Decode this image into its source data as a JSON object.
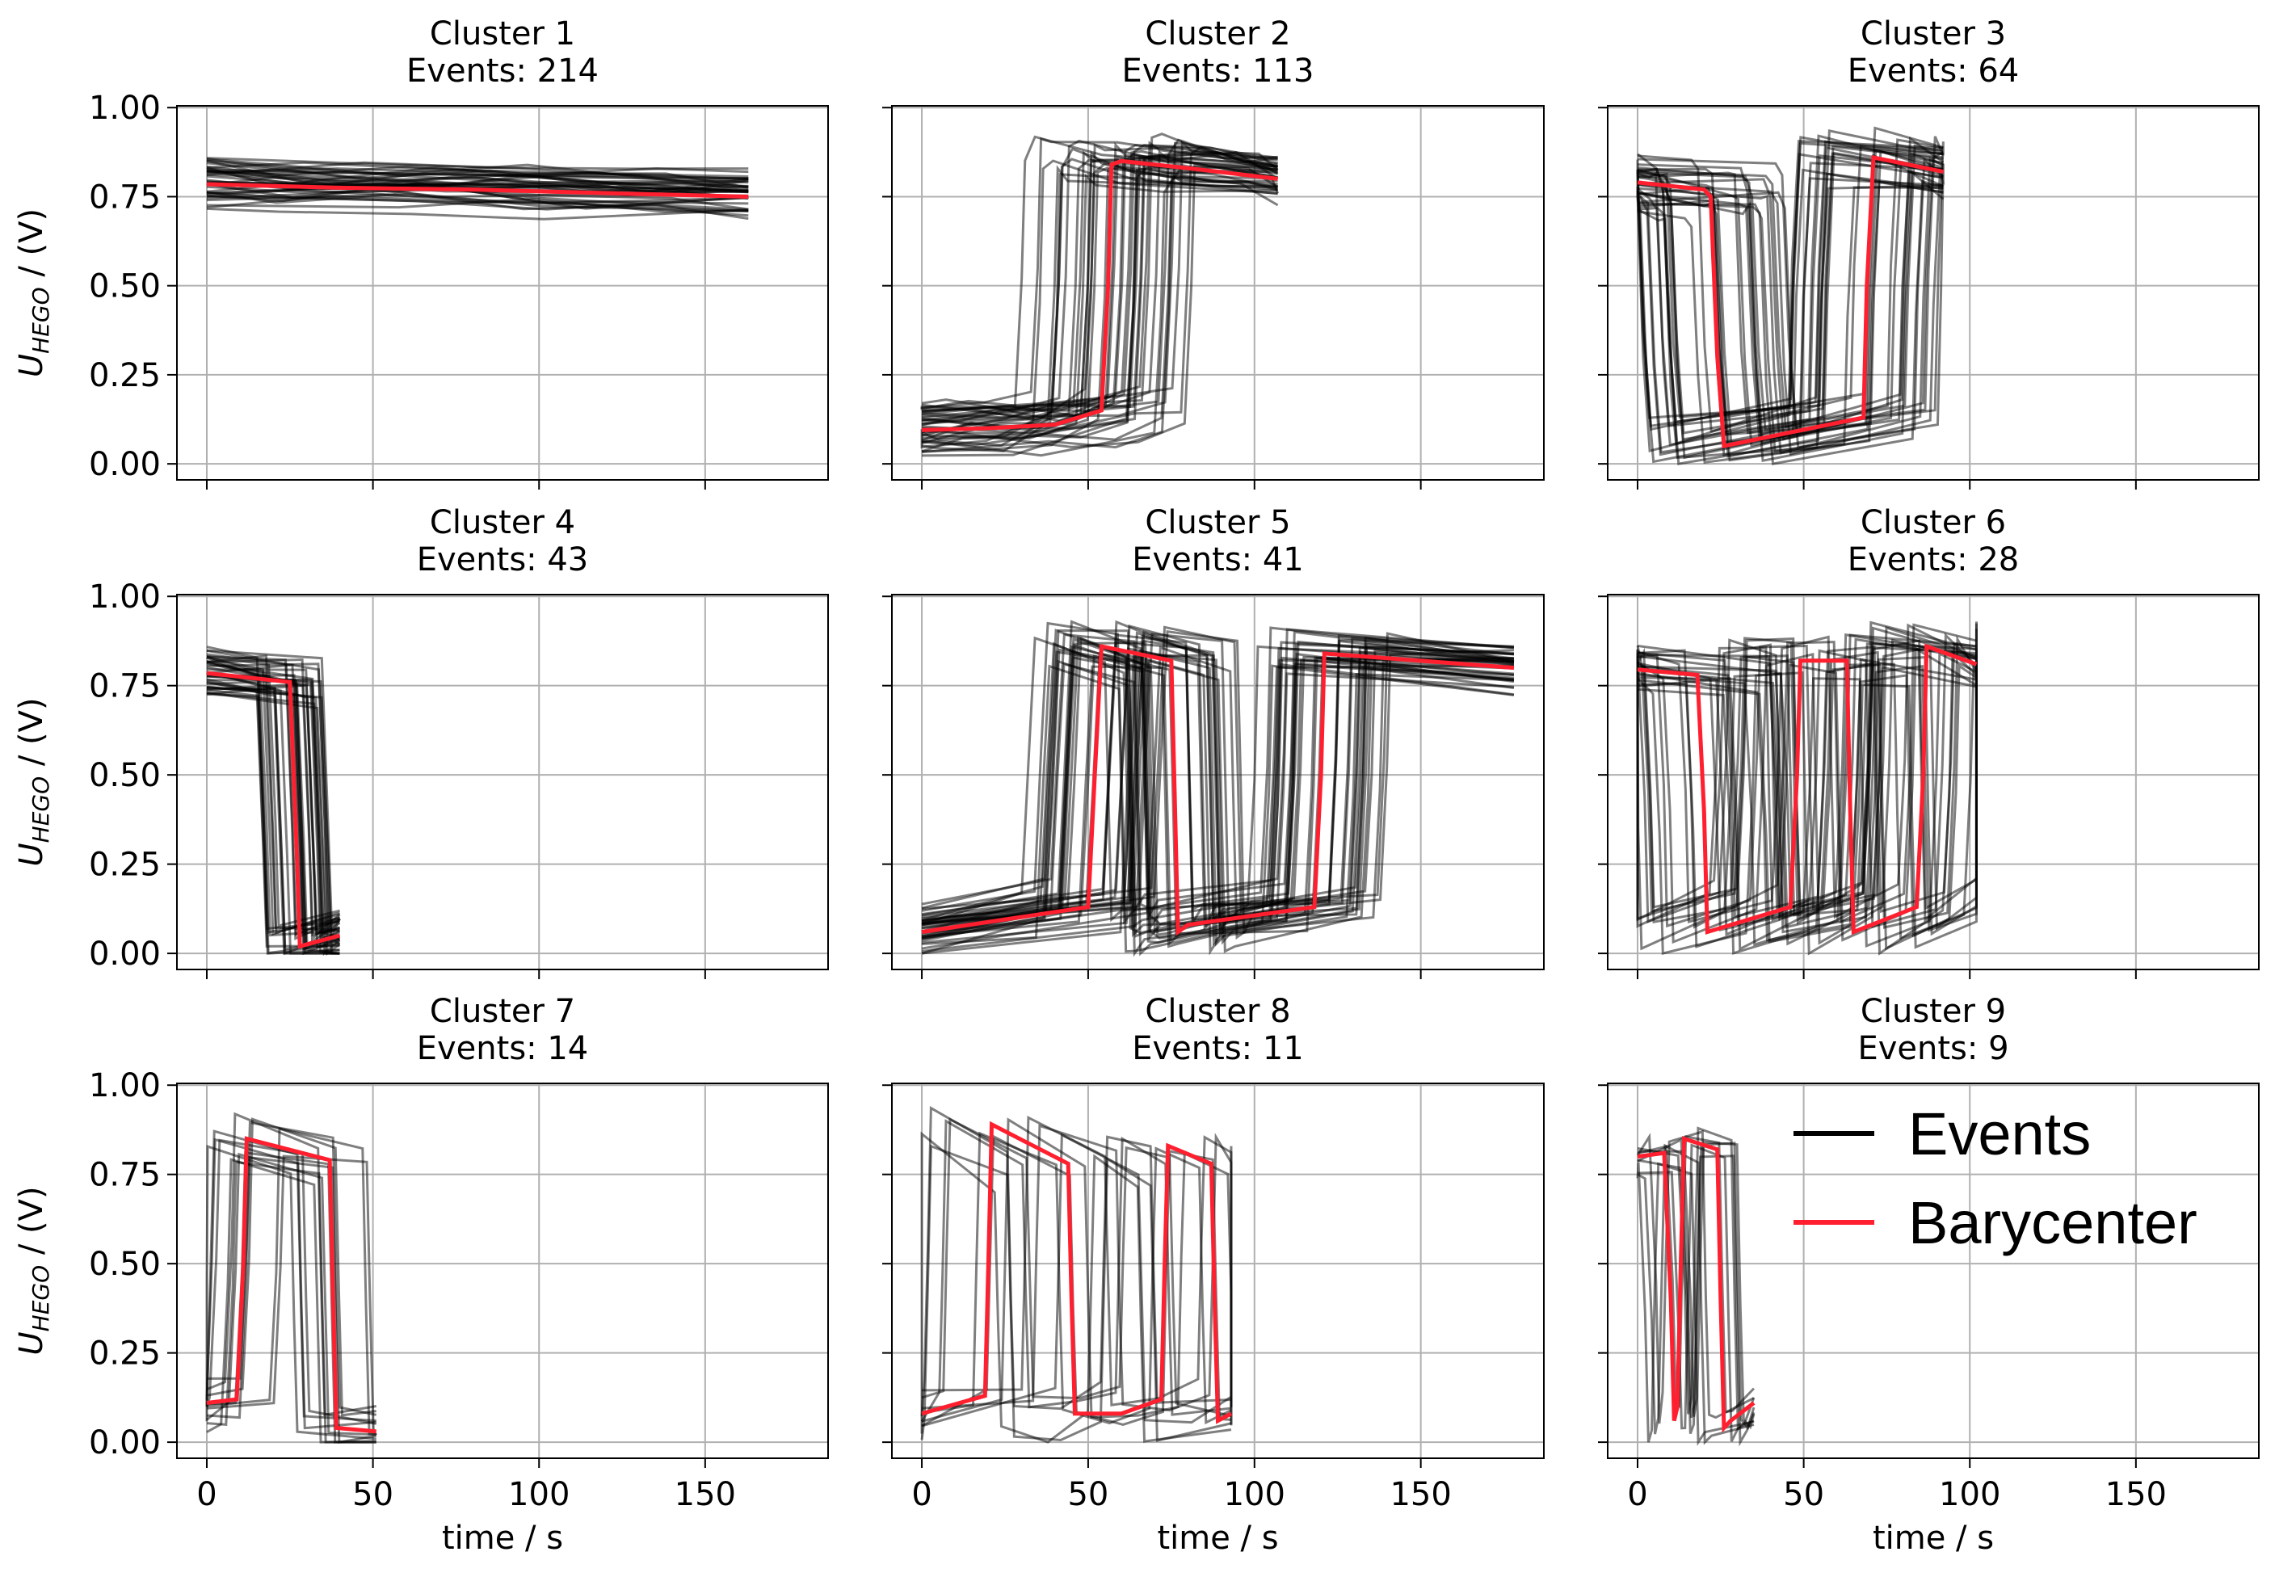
{
  "chart_data": {
    "type": "line",
    "layout": "3x3 grid of subplots",
    "xlabel": "time / s",
    "ylabel_main": "U",
    "ylabel_sub": "HEGO",
    "ylabel_unit": " / (V)",
    "xlim": [
      -9,
      187
    ],
    "ylim": [
      -0.045,
      1.005
    ],
    "xticks": [
      0,
      50,
      100,
      150
    ],
    "xtick_labels": [
      "0",
      "50",
      "100",
      "150"
    ],
    "yticks": [
      0,
      0.25,
      0.5,
      0.75,
      1.0
    ],
    "ytick_labels": [
      "0.00",
      "0.25",
      "0.50",
      "0.75",
      "1.00"
    ],
    "grid": true,
    "legend": {
      "placement": "in subplot Cluster 9, top-right",
      "entries": [
        {
          "label": "Events",
          "color": "#000000"
        },
        {
          "label": "Barycenter",
          "color": "#ff1f2f"
        }
      ]
    },
    "colors": {
      "events": "#000000",
      "barycenter": "#ff1f2f",
      "grid": "#b0b0b0"
    },
    "clusters": [
      {
        "title": "Cluster 1",
        "events_label": "Events: 214",
        "events": 214,
        "barycenter": [
          [
            0,
            0.785
          ],
          [
            40,
            0.775
          ],
          [
            80,
            0.77
          ],
          [
            120,
            0.76
          ],
          [
            163,
            0.75
          ]
        ]
      },
      {
        "title": "Cluster 2",
        "events_label": "Events: 113",
        "events": 113,
        "barycenter": [
          [
            0,
            0.095
          ],
          [
            20,
            0.1
          ],
          [
            40,
            0.11
          ],
          [
            54,
            0.15
          ],
          [
            56,
            0.5
          ],
          [
            57,
            0.84
          ],
          [
            60,
            0.85
          ],
          [
            80,
            0.83
          ],
          [
            107,
            0.8
          ]
        ]
      },
      {
        "title": "Cluster 3",
        "events_label": "Events: 64",
        "events": 64,
        "barycenter": [
          [
            0,
            0.79
          ],
          [
            20,
            0.77
          ],
          [
            22,
            0.75
          ],
          [
            24,
            0.3
          ],
          [
            26,
            0.05
          ],
          [
            68,
            0.13
          ],
          [
            69,
            0.5
          ],
          [
            71,
            0.86
          ],
          [
            92,
            0.82
          ]
        ]
      },
      {
        "title": "Cluster 4",
        "events_label": "Events: 43",
        "events": 43,
        "barycenter": [
          [
            0,
            0.785
          ],
          [
            25,
            0.76
          ],
          [
            27,
            0.3
          ],
          [
            28,
            0.02
          ],
          [
            40,
            0.05
          ]
        ]
      },
      {
        "title": "Cluster 5",
        "events_label": "Events: 41",
        "events": 41,
        "barycenter": [
          [
            0,
            0.06
          ],
          [
            50,
            0.13
          ],
          [
            52,
            0.5
          ],
          [
            54,
            0.86
          ],
          [
            75,
            0.82
          ],
          [
            76,
            0.45
          ],
          [
            77,
            0.06
          ],
          [
            80,
            0.08
          ],
          [
            118,
            0.13
          ],
          [
            120,
            0.5
          ],
          [
            121,
            0.84
          ],
          [
            178,
            0.8
          ]
        ]
      },
      {
        "title": "Cluster 6",
        "events_label": "Events: 28",
        "events": 28,
        "barycenter": [
          [
            0,
            0.795
          ],
          [
            18,
            0.78
          ],
          [
            20,
            0.4
          ],
          [
            21,
            0.06
          ],
          [
            46,
            0.13
          ],
          [
            48,
            0.5
          ],
          [
            49,
            0.82
          ],
          [
            63,
            0.82
          ],
          [
            64,
            0.4
          ],
          [
            65,
            0.06
          ],
          [
            84,
            0.13
          ],
          [
            86,
            0.5
          ],
          [
            87,
            0.86
          ],
          [
            102,
            0.81
          ]
        ]
      },
      {
        "title": "Cluster 7",
        "events_label": "Events: 14",
        "events": 14,
        "barycenter": [
          [
            0,
            0.11
          ],
          [
            9,
            0.12
          ],
          [
            11,
            0.5
          ],
          [
            12,
            0.85
          ],
          [
            37,
            0.79
          ],
          [
            38,
            0.4
          ],
          [
            39,
            0.04
          ],
          [
            51,
            0.03
          ]
        ]
      },
      {
        "title": "Cluster 8",
        "events_label": "Events: 11",
        "events": 11,
        "barycenter": [
          [
            0,
            0.08
          ],
          [
            19,
            0.13
          ],
          [
            20,
            0.5
          ],
          [
            21,
            0.89
          ],
          [
            44,
            0.78
          ],
          [
            45,
            0.4
          ],
          [
            46,
            0.08
          ],
          [
            60,
            0.08
          ],
          [
            72,
            0.12
          ],
          [
            73,
            0.5
          ],
          [
            74,
            0.83
          ],
          [
            87,
            0.78
          ],
          [
            88,
            0.4
          ],
          [
            89,
            0.06
          ],
          [
            93,
            0.08
          ]
        ]
      },
      {
        "title": "Cluster 9",
        "events_label": "Events: 9",
        "events": 9,
        "barycenter": [
          [
            0,
            0.8
          ],
          [
            8,
            0.81
          ],
          [
            10,
            0.4
          ],
          [
            11,
            0.06
          ],
          [
            12,
            0.1
          ],
          [
            13,
            0.5
          ],
          [
            14,
            0.85
          ],
          [
            24,
            0.82
          ],
          [
            25,
            0.4
          ],
          [
            26,
            0.04
          ],
          [
            28,
            0.06
          ],
          [
            35,
            0.11
          ]
        ]
      }
    ]
  }
}
